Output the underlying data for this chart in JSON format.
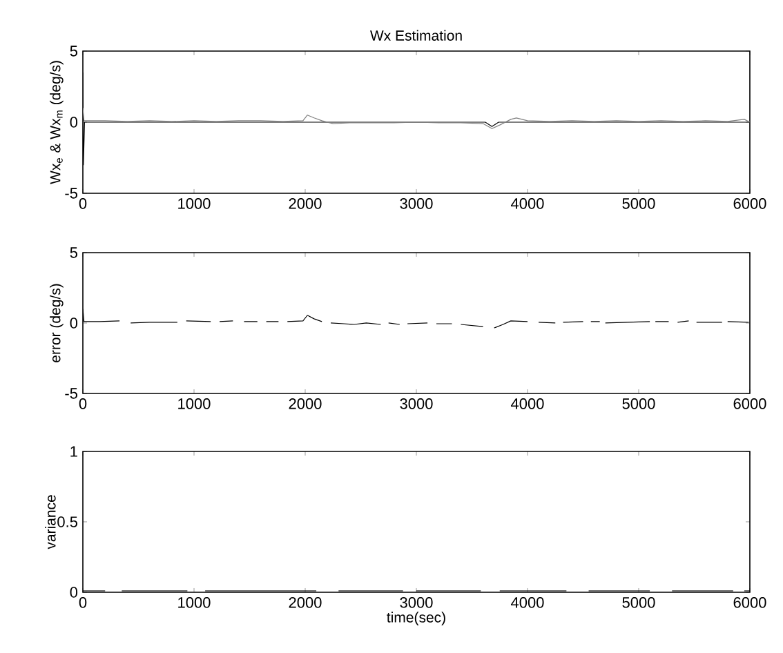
{
  "chart_data": [
    {
      "type": "line",
      "title": "Wx Estimation",
      "ylabel": "Wx$_{e}$ & Wx$_{m}$ (deg/s)",
      "xlim": [
        0,
        6000
      ],
      "ylim": [
        -5,
        5
      ],
      "xticks": [
        0,
        1000,
        2000,
        3000,
        4000,
        5000,
        6000
      ],
      "yticks": [
        -5,
        0,
        5
      ],
      "series": [
        {
          "color": "#000000",
          "x": [
            0,
            5,
            15,
            1000,
            2000,
            3000,
            3620,
            3680,
            3740,
            4000,
            5000,
            6000
          ],
          "values": [
            3.5,
            -3,
            0,
            0,
            0,
            0,
            0,
            -0.3,
            0,
            0,
            0,
            0
          ]
        },
        {
          "color": "#808080",
          "x": [
            0,
            10,
            200,
            400,
            600,
            800,
            1000,
            1200,
            1400,
            1600,
            1800,
            1980,
            2020,
            2080,
            2150,
            2250,
            2400,
            2600,
            2800,
            3000,
            3200,
            3400,
            3600,
            3680,
            3750,
            3850,
            3900,
            4000,
            4200,
            4400,
            4600,
            4800,
            5000,
            5200,
            5400,
            5600,
            5800,
            5950,
            6000
          ],
          "values": [
            1,
            0.1,
            0.1,
            0.05,
            0.1,
            0.05,
            0.1,
            0.05,
            0.1,
            0.1,
            0.05,
            0.1,
            0.5,
            0.3,
            0.1,
            -0.1,
            -0.05,
            -0.05,
            -0.05,
            0,
            -0.05,
            -0.05,
            -0.1,
            -0.45,
            -0.2,
            0.2,
            0.3,
            0.1,
            0.05,
            0.1,
            0.05,
            0.1,
            0.05,
            0.1,
            0.05,
            0.1,
            0.05,
            0.2,
            0
          ]
        }
      ]
    },
    {
      "type": "line",
      "ylabel": "error (deg/s)",
      "xlim": [
        0,
        6000
      ],
      "ylim": [
        -5,
        5
      ],
      "xticks": [
        0,
        1000,
        2000,
        3000,
        4000,
        5000,
        6000
      ],
      "yticks": [
        -5,
        0,
        5
      ],
      "series": [
        {
          "color": "#000000",
          "x": [
            0,
            10,
            150,
            330,
            380,
            430,
            600,
            850,
            880,
            930,
            1150,
            1180,
            1230,
            1350,
            1400,
            1450,
            1570,
            1610,
            1650,
            1760,
            1800,
            1840,
            1980,
            2020,
            2080,
            2150,
            2190,
            2230,
            2350,
            2440,
            2550,
            2680,
            2710,
            2750,
            2850,
            2880,
            2920,
            3100,
            3140,
            3180,
            3320,
            3350,
            3400,
            3600,
            3640,
            3700,
            3780,
            3850,
            4000,
            4080,
            4100,
            4250,
            4280,
            4320,
            4500,
            4520,
            4570,
            4650,
            4670,
            4700,
            5100,
            5130,
            5150,
            5270,
            5300,
            5350,
            5450,
            5480,
            5520,
            5750,
            5780,
            5800,
            5990
          ],
          "values": [
            1.0,
            0.1,
            0.1,
            0.15,
            null,
            0.0,
            0.05,
            0.05,
            null,
            0.15,
            0.1,
            null,
            0.1,
            0.15,
            null,
            0.1,
            0.1,
            null,
            0.1,
            0.1,
            null,
            0.1,
            0.15,
            0.55,
            0.3,
            0.1,
            null,
            0.0,
            -0.05,
            -0.1,
            0.0,
            -0.1,
            null,
            0.0,
            -0.1,
            null,
            -0.05,
            0.0,
            null,
            -0.05,
            -0.05,
            null,
            -0.1,
            -0.25,
            null,
            -0.35,
            -0.1,
            0.15,
            0.1,
            null,
            0.05,
            0.0,
            null,
            0.05,
            0.1,
            null,
            0.1,
            0.1,
            null,
            0.0,
            0.1,
            null,
            0.1,
            0.1,
            null,
            0.05,
            0.15,
            null,
            0.05,
            0.05,
            null,
            0.1,
            0.05
          ]
        }
      ]
    },
    {
      "type": "line",
      "ylabel": "variance",
      "xlabel": "time(sec)",
      "xlim": [
        0,
        6000
      ],
      "ylim": [
        0,
        1
      ],
      "xticks": [
        0,
        1000,
        2000,
        3000,
        4000,
        5000,
        6000
      ],
      "yticks": [
        0,
        0.5,
        1
      ],
      "series": [
        {
          "color": "#000000",
          "x": [
            0,
            200,
            250,
            350,
            940,
            1000,
            1100,
            2100,
            2200,
            2300,
            2880,
            2940,
            3000,
            3580,
            3650,
            3750,
            4350,
            4450,
            4550,
            5100,
            5200,
            5300,
            5850,
            5900,
            5950,
            6000
          ],
          "values": [
            0.01,
            0.01,
            null,
            0.01,
            0.01,
            null,
            0.01,
            0.01,
            null,
            0.01,
            0.01,
            null,
            0.01,
            0.01,
            null,
            0.01,
            0.01,
            null,
            0.01,
            0.01,
            null,
            0.01,
            0.01,
            null,
            0.01,
            0.01
          ]
        }
      ]
    }
  ]
}
